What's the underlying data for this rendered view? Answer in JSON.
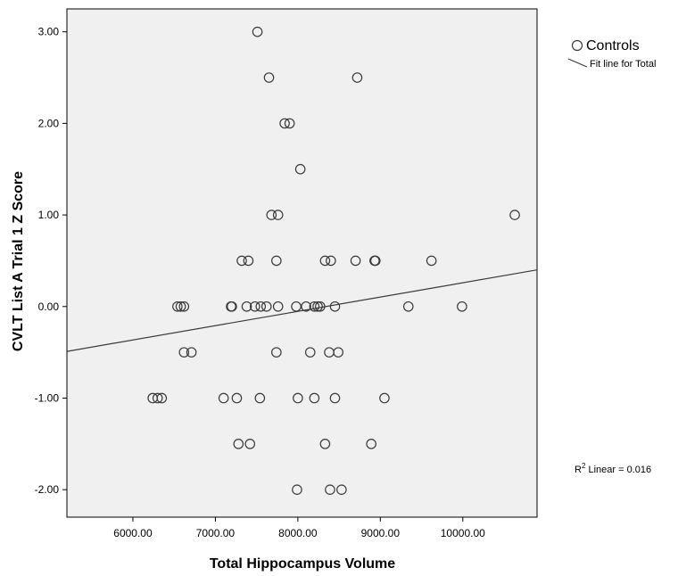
{
  "chart_data": {
    "type": "scatter",
    "xlabel": "Total Hippocampus Volume",
    "ylabel": "CVLT List A Trial 1 Z Score",
    "xlim": [
      5200,
      10900
    ],
    "ylim": [
      -2.3,
      3.25
    ],
    "xticks": [
      6000,
      7000,
      8000,
      9000,
      10000
    ],
    "xtick_labels": [
      "6000.00",
      "7000.00",
      "8000.00",
      "9000.00",
      "10000.00"
    ],
    "yticks": [
      -2,
      -1,
      0,
      1,
      2,
      3
    ],
    "ytick_labels": [
      "-2.00",
      "-1.00",
      "0.00",
      "1.00",
      "2.00",
      "3.00"
    ],
    "grid": false,
    "legend_position": "top-right, outside plot",
    "series": [
      {
        "name": "Controls",
        "marker": "open-circle",
        "points": [
          [
            7510,
            3.0
          ],
          [
            7650,
            2.5
          ],
          [
            8720,
            2.5
          ],
          [
            7840,
            2.0
          ],
          [
            7900,
            2.0
          ],
          [
            8030,
            1.5
          ],
          [
            7680,
            1.0
          ],
          [
            7760,
            1.0
          ],
          [
            10630,
            1.0
          ],
          [
            7320,
            0.5
          ],
          [
            7400,
            0.5
          ],
          [
            7740,
            0.5
          ],
          [
            8330,
            0.5
          ],
          [
            8400,
            0.5
          ],
          [
            8700,
            0.5
          ],
          [
            8930,
            0.5
          ],
          [
            8940,
            0.5
          ],
          [
            9620,
            0.5
          ],
          [
            6540,
            0.0
          ],
          [
            6580,
            0.0
          ],
          [
            6620,
            0.0
          ],
          [
            7190,
            0.0
          ],
          [
            7200,
            0.0
          ],
          [
            7380,
            0.0
          ],
          [
            7480,
            0.0
          ],
          [
            7550,
            0.0
          ],
          [
            7620,
            0.0
          ],
          [
            7760,
            0.0
          ],
          [
            7980,
            0.0
          ],
          [
            8100,
            0.0
          ],
          [
            8200,
            0.0
          ],
          [
            8240,
            0.0
          ],
          [
            8270,
            0.0
          ],
          [
            8450,
            0.0
          ],
          [
            9340,
            0.0
          ],
          [
            9990,
            0.0
          ],
          [
            6620,
            -0.5
          ],
          [
            6710,
            -0.5
          ],
          [
            7740,
            -0.5
          ],
          [
            8150,
            -0.5
          ],
          [
            8380,
            -0.5
          ],
          [
            8490,
            -0.5
          ],
          [
            6240,
            -1.0
          ],
          [
            6300,
            -1.0
          ],
          [
            6350,
            -1.0
          ],
          [
            7100,
            -1.0
          ],
          [
            7260,
            -1.0
          ],
          [
            7540,
            -1.0
          ],
          [
            8000,
            -1.0
          ],
          [
            8200,
            -1.0
          ],
          [
            8450,
            -1.0
          ],
          [
            9050,
            -1.0
          ],
          [
            7280,
            -1.5
          ],
          [
            7420,
            -1.5
          ],
          [
            8330,
            -1.5
          ],
          [
            8890,
            -1.5
          ],
          [
            7990,
            -2.0
          ],
          [
            8390,
            -2.0
          ],
          [
            8530,
            -2.0
          ]
        ]
      }
    ],
    "fit_line": {
      "name": "Fit line for Total",
      "x": [
        5200,
        10900
      ],
      "y": [
        -0.49,
        0.4
      ]
    },
    "r2_annotation": {
      "prefix": "R",
      "superscript": "2",
      "text": " Linear = 0.016"
    },
    "colors": {
      "plot_background": "#f0f0f0",
      "marker_stroke": "#3a3a3a",
      "line": "#3a3a3a"
    }
  }
}
